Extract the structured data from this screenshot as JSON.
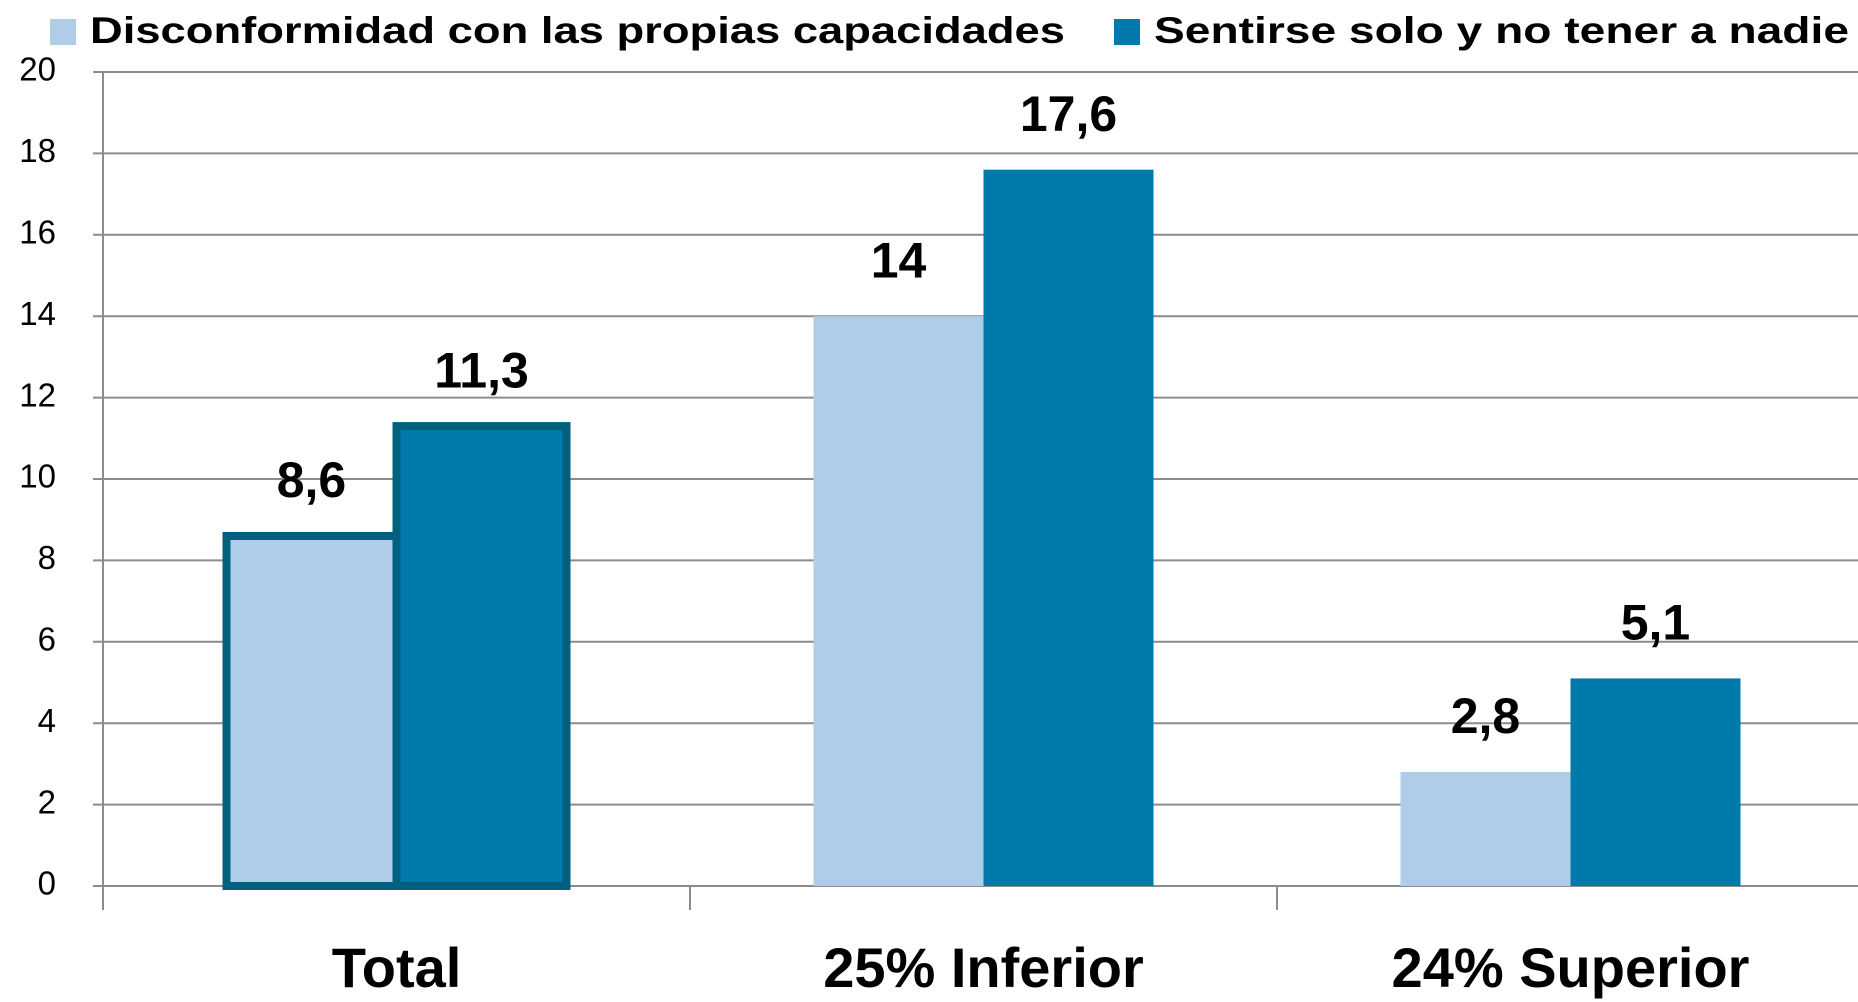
{
  "chart_data": {
    "type": "bar",
    "categories": [
      "Total",
      "25% Inferior",
      "24% Superior"
    ],
    "series": [
      {
        "name": "Disconformidad con las propias capacidades",
        "color": "#afcde9",
        "values": [
          8.6,
          14,
          2.8
        ],
        "value_labels": [
          "8,6",
          "14",
          "2,8"
        ]
      },
      {
        "name": "Sentirse solo y no tener a nadie",
        "color": "#0079ab",
        "values": [
          11.3,
          17.6,
          5.1
        ],
        "value_labels": [
          "11,3",
          "17,6",
          "5,1"
        ]
      }
    ],
    "ylim": [
      0,
      20
    ],
    "yticks": [
      0,
      2,
      4,
      6,
      8,
      10,
      12,
      14,
      16,
      18,
      20
    ],
    "grid": true,
    "legend": "top",
    "outline": {
      "category": 0,
      "color": "#00607d"
    }
  }
}
